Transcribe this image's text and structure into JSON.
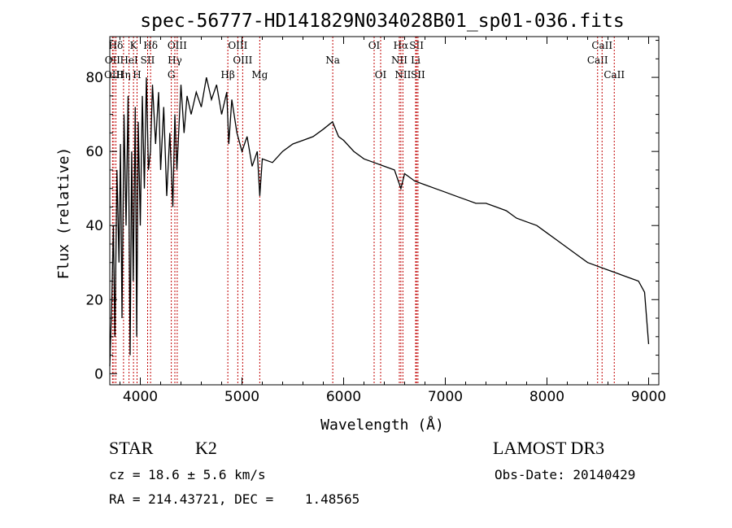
{
  "title": "spec-56777-HD141829N034028B01_sp01-036.fits",
  "chart_data": {
    "type": "line",
    "xlabel": "Wavelength (Å)",
    "ylabel": "Flux (relative)",
    "xlim": [
      3700,
      9100
    ],
    "ylim": [
      -3,
      91
    ],
    "xticks": [
      4000,
      5000,
      6000,
      7000,
      8000,
      9000
    ],
    "yticks": [
      0,
      20,
      40,
      60,
      80
    ],
    "grid": false,
    "series": [
      {
        "color": "#000000",
        "points": [
          [
            3700,
            2
          ],
          [
            3720,
            20
          ],
          [
            3735,
            40
          ],
          [
            3750,
            10
          ],
          [
            3770,
            55
          ],
          [
            3790,
            30
          ],
          [
            3805,
            62
          ],
          [
            3820,
            15
          ],
          [
            3840,
            70
          ],
          [
            3860,
            40
          ],
          [
            3880,
            75
          ],
          [
            3900,
            5
          ],
          [
            3915,
            60
          ],
          [
            3930,
            25
          ],
          [
            3950,
            72
          ],
          [
            3965,
            10
          ],
          [
            3980,
            68
          ],
          [
            4000,
            40
          ],
          [
            4020,
            75
          ],
          [
            4040,
            50
          ],
          [
            4060,
            80
          ],
          [
            4080,
            55
          ],
          [
            4100,
            60
          ],
          [
            4120,
            78
          ],
          [
            4150,
            62
          ],
          [
            4180,
            76
          ],
          [
            4200,
            55
          ],
          [
            4230,
            72
          ],
          [
            4260,
            48
          ],
          [
            4290,
            65
          ],
          [
            4320,
            45
          ],
          [
            4340,
            70
          ],
          [
            4360,
            55
          ],
          [
            4400,
            78
          ],
          [
            4430,
            65
          ],
          [
            4460,
            75
          ],
          [
            4500,
            70
          ],
          [
            4550,
            76
          ],
          [
            4600,
            72
          ],
          [
            4650,
            80
          ],
          [
            4700,
            74
          ],
          [
            4750,
            78
          ],
          [
            4800,
            70
          ],
          [
            4850,
            76
          ],
          [
            4870,
            62
          ],
          [
            4900,
            74
          ],
          [
            4950,
            65
          ],
          [
            5000,
            60
          ],
          [
            5050,
            64
          ],
          [
            5100,
            56
          ],
          [
            5150,
            60
          ],
          [
            5175,
            48
          ],
          [
            5200,
            58
          ],
          [
            5300,
            57
          ],
          [
            5400,
            60
          ],
          [
            5500,
            62
          ],
          [
            5600,
            63
          ],
          [
            5700,
            64
          ],
          [
            5800,
            66
          ],
          [
            5890,
            68
          ],
          [
            5950,
            64
          ],
          [
            6000,
            63
          ],
          [
            6100,
            60
          ],
          [
            6200,
            58
          ],
          [
            6300,
            57
          ],
          [
            6400,
            56
          ],
          [
            6500,
            55
          ],
          [
            6563,
            50
          ],
          [
            6600,
            54
          ],
          [
            6700,
            52
          ],
          [
            6800,
            51
          ],
          [
            6900,
            50
          ],
          [
            7000,
            49
          ],
          [
            7100,
            48
          ],
          [
            7200,
            47
          ],
          [
            7300,
            46
          ],
          [
            7400,
            46
          ],
          [
            7500,
            45
          ],
          [
            7600,
            44
          ],
          [
            7700,
            42
          ],
          [
            7800,
            41
          ],
          [
            7900,
            40
          ],
          [
            8000,
            38
          ],
          [
            8100,
            36
          ],
          [
            8200,
            34
          ],
          [
            8300,
            32
          ],
          [
            8400,
            30
          ],
          [
            8500,
            29
          ],
          [
            8600,
            28
          ],
          [
            8700,
            27
          ],
          [
            8800,
            26
          ],
          [
            8900,
            25
          ],
          [
            8960,
            22
          ],
          [
            9000,
            8
          ]
        ]
      }
    ]
  },
  "spectral_lines": [
    {
      "label": "Hδ",
      "wave": 3760,
      "row": 0
    },
    {
      "label": "OII",
      "wave": 3727,
      "row": 1
    },
    {
      "label": "OIII",
      "wave": 3740,
      "row": 2
    },
    {
      "label": "K",
      "wave": 3933,
      "row": 0
    },
    {
      "label": "HeI",
      "wave": 3889,
      "row": 1
    },
    {
      "label": "Hη",
      "wave": 3835,
      "row": 2
    },
    {
      "label": "Hδ",
      "wave": 4101,
      "row": 0
    },
    {
      "label": "SII",
      "wave": 4072,
      "row": 1
    },
    {
      "label": "H",
      "wave": 3968,
      "row": 2
    },
    {
      "label": "OIII",
      "wave": 4363,
      "row": 0
    },
    {
      "label": "Hγ",
      "wave": 4340,
      "row": 1
    },
    {
      "label": "G",
      "wave": 4305,
      "row": 2
    },
    {
      "label": "Hβ",
      "wave": 4861,
      "row": 2
    },
    {
      "label": "OIII",
      "wave": 4959,
      "row": 0
    },
    {
      "label": "OIII",
      "wave": 5007,
      "row": 1
    },
    {
      "label": "Mg",
      "wave": 5175,
      "row": 2
    },
    {
      "label": "Na",
      "wave": 5893,
      "row": 1
    },
    {
      "label": "OI",
      "wave": 6300,
      "row": 0
    },
    {
      "label": "OI",
      "wave": 6364,
      "row": 2
    },
    {
      "label": "Hα",
      "wave": 6563,
      "row": 0
    },
    {
      "label": "NII",
      "wave": 6548,
      "row": 1
    },
    {
      "label": "NII",
      "wave": 6583,
      "row": 2
    },
    {
      "label": "SII",
      "wave": 6717,
      "row": 0
    },
    {
      "label": "Li",
      "wave": 6708,
      "row": 1
    },
    {
      "label": "SII",
      "wave": 6731,
      "row": 2
    },
    {
      "label": "CaII",
      "wave": 8498,
      "row": 1
    },
    {
      "label": "CaII",
      "wave": 8542,
      "row": 0
    },
    {
      "label": "CaII",
      "wave": 8662,
      "row": 2
    }
  ],
  "info": {
    "class": "STAR",
    "subclass": "K2",
    "survey": "LAMOST DR3",
    "cz": "cz = 18.6 ± 5.6 km/s",
    "obs_date": "Obs-Date: 20140429",
    "coords": "RA = 214.43721, DEC =    1.48565"
  }
}
